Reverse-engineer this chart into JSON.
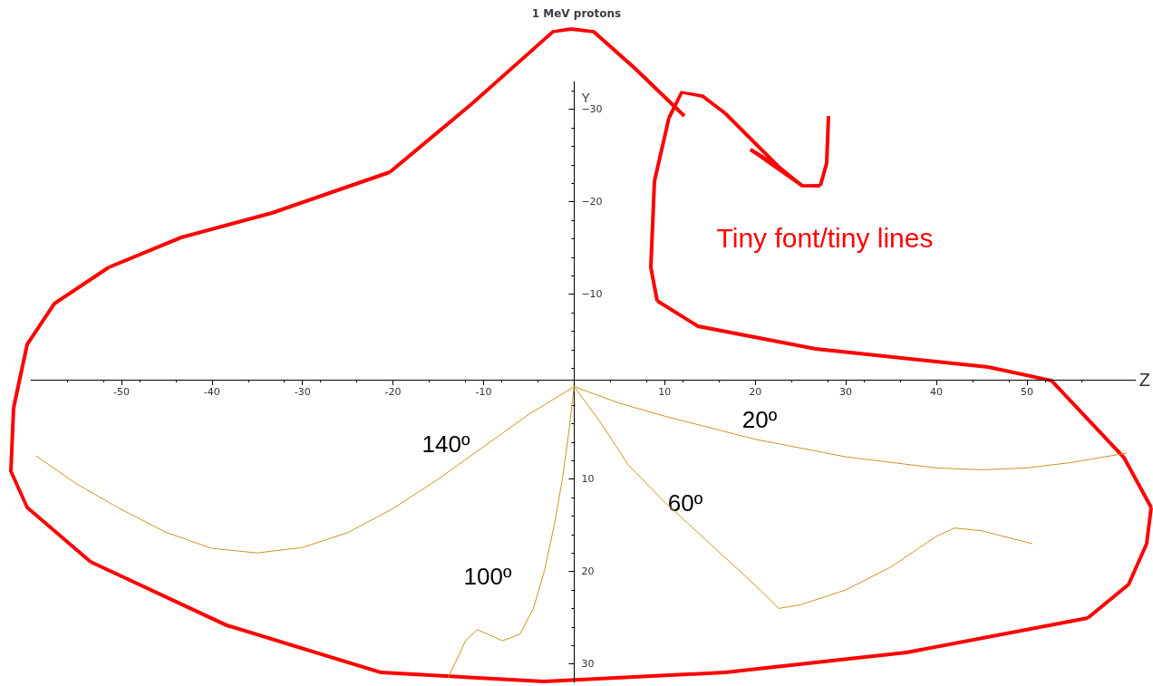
{
  "chart_data": {
    "type": "line",
    "title": "1 MeV protons",
    "xlabel": "Z",
    "ylabel": "Y",
    "xlim": [
      -60,
      62
    ],
    "xticks": [
      -50,
      -40,
      -30,
      -20,
      -10,
      10,
      20,
      30,
      40,
      50
    ],
    "ylim": [
      32,
      -33
    ],
    "yticks": [
      {
        "value": -30,
        "label": "−30"
      },
      {
        "value": -20,
        "label": "−20"
      },
      {
        "value": -10,
        "label": "−10"
      },
      10,
      20,
      30
    ],
    "grid": false,
    "marker": "none",
    "line_style": "solid",
    "series": [
      {
        "color": "#c8961e",
        "x": [
          0,
          5,
          10,
          20,
          30,
          40,
          45,
          50,
          55,
          61
        ],
        "values": [
          0,
          1.8,
          3.2,
          5.7,
          7.6,
          8.8,
          9.0,
          8.8,
          8.2,
          7.2
        ]
      },
      {
        "color": "#c8961e",
        "x": [
          0,
          3,
          6,
          10,
          15,
          20,
          22.6,
          25,
          30,
          35,
          40,
          42,
          45,
          50.6
        ],
        "values": [
          0,
          4,
          8.5,
          12.5,
          17,
          21.5,
          24,
          23.6,
          22,
          19.5,
          16.2,
          15.3,
          15.6,
          17
        ]
      },
      {
        "color": "#c8961e",
        "x": [
          0,
          -0.6,
          -1.3,
          -2.2,
          -3.3,
          -4.5,
          -6,
          -7.9,
          -9.5,
          -10.7,
          -12,
          -13.9
        ],
        "values": [
          0,
          5,
          10,
          15,
          20,
          24,
          26.8,
          27.5,
          26.8,
          26.3,
          27.5,
          31.5
        ]
      },
      {
        "color": "#c8961e",
        "x": [
          0,
          -5,
          -10,
          -15,
          -20,
          -25,
          -30,
          -35,
          -40,
          -45,
          -50,
          -55,
          -59.4
        ],
        "values": [
          0,
          3,
          6.5,
          10,
          13.2,
          15.8,
          17.4,
          18,
          17.5,
          15.8,
          13.3,
          10.5,
          7.5
        ]
      }
    ],
    "annotations": [
      "20º",
      "60º",
      "100º",
      "140º",
      "Tiny font/tiny lines"
    ]
  }
}
